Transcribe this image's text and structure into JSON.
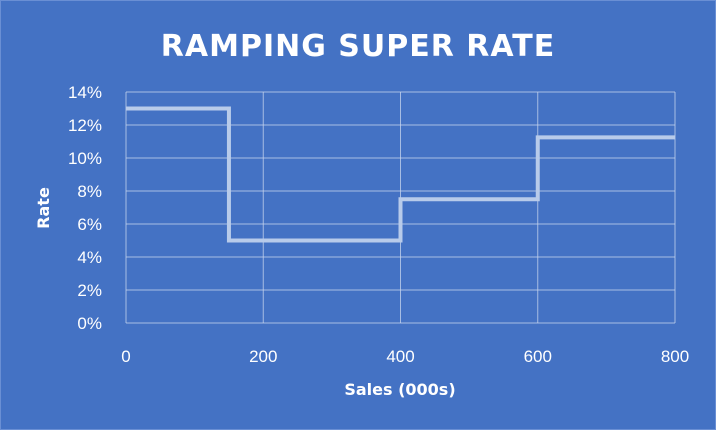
{
  "chart_data": {
    "type": "line",
    "title": "RAMPING SUPER RATE",
    "xlabel": "Sales (000s)",
    "ylabel": "Rate",
    "xlim": [
      0,
      800
    ],
    "ylim": [
      0,
      14
    ],
    "x_ticks": [
      0,
      200,
      400,
      600,
      800
    ],
    "x_tick_labels": [
      "0",
      "200",
      "400",
      "600",
      "800"
    ],
    "y_ticks": [
      0,
      2,
      4,
      6,
      8,
      10,
      12,
      14
    ],
    "y_tick_labels": [
      "0%",
      "2%",
      "4%",
      "6%",
      "8%",
      "10%",
      "12%",
      "14%"
    ],
    "grid": true,
    "legend": "none",
    "series": [
      {
        "color": "#b8cbea",
        "x": [
          0,
          150,
          150,
          400,
          400,
          600,
          600,
          800
        ],
        "y": [
          13,
          13,
          5,
          5,
          7.5,
          7.5,
          11.25,
          11.25
        ]
      }
    ]
  }
}
